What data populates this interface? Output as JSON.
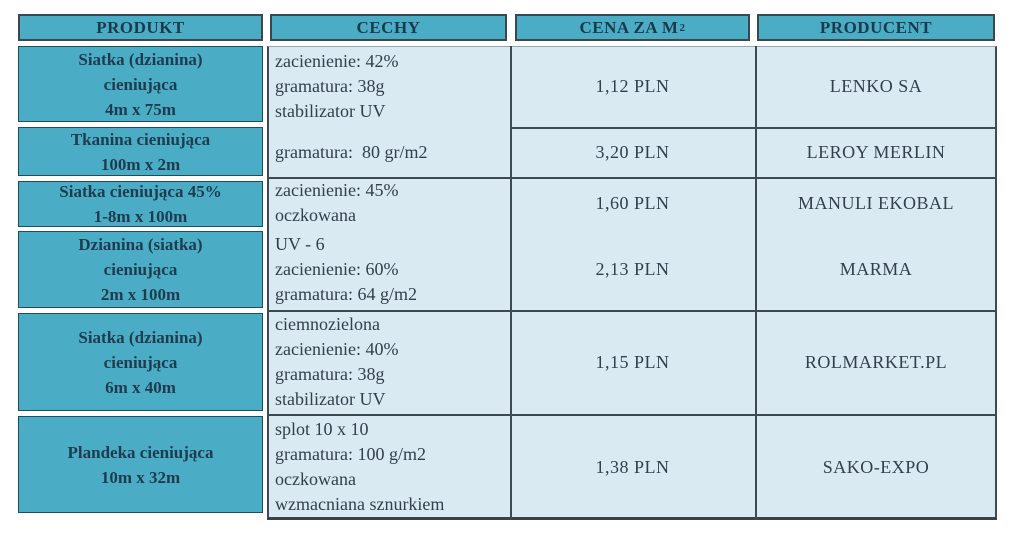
{
  "table": {
    "columns": {
      "produkt": "PRODUKT",
      "cechy": "CECHY",
      "cena": "CENA ZA M",
      "cena_sup": "2",
      "producent": "PRODUCENT"
    },
    "rows": [
      {
        "product_lines": [
          "Siatka (dzianina)",
          "cieniująca",
          "4m x 75m"
        ],
        "feature_lines": [
          "zacienienie: 42%",
          "gramatura: 38g",
          "stabilizator UV"
        ],
        "price": "1,12 PLN",
        "producer": "LENKO SA"
      },
      {
        "product_lines": [
          "Tkanina cieniująca",
          "100m x 2m"
        ],
        "feature_lines": [
          "gramatura:  80 gr/m2"
        ],
        "price": "3,20 PLN",
        "producer": "LEROY MERLIN"
      },
      {
        "product_lines": [
          "Siatka cieniująca 45%",
          "1-8m x 100m"
        ],
        "feature_lines": [
          "zacienienie: 45%",
          "oczkowana"
        ],
        "price": "1,60 PLN",
        "producer": "MANULI EKOBAL"
      },
      {
        "product_lines": [
          "Dzianina (siatka)",
          "cieniująca",
          "2m x 100m"
        ],
        "feature_lines": [
          "UV - 6",
          "zacienienie: 60%",
          "gramatura: 64 g/m2"
        ],
        "price": "2,13 PLN",
        "producer": "MARMA"
      },
      {
        "product_lines": [
          "Siatka (dzianina)",
          "cieniująca",
          "6m x 40m"
        ],
        "feature_lines": [
          "ciemnozielona",
          "zacienienie: 40%",
          "gramatura: 38g",
          "stabilizator UV"
        ],
        "price": "1,15 PLN",
        "producer": "ROLMARKET.PL"
      },
      {
        "product_lines": [
          "Plandeka cieniująca",
          "10m x 32m"
        ],
        "feature_lines": [
          "splot 10 x 10",
          "gramatura: 100 g/m2",
          "oczkowana",
          "wzmacniana sznurkiem"
        ],
        "price": "1,38 PLN",
        "producer": "SAKO-EXPO"
      }
    ]
  },
  "colors": {
    "teal": "#4BACC6",
    "light_blue": "#D9EAF2",
    "header_text": "#1C3A4A",
    "body_text": "#333F4B",
    "border_dark": "#3D4A52",
    "teal_border": "#1D4E5E"
  }
}
